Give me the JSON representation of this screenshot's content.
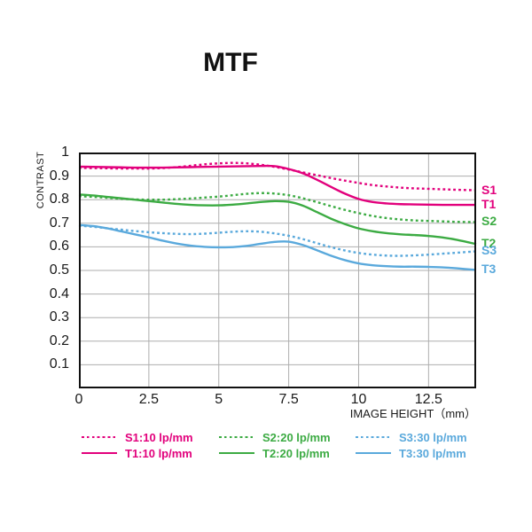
{
  "title": "MTF",
  "colors": {
    "magenta": "#E2007C",
    "green": "#3CAB43",
    "blue": "#5AA9DC",
    "grid": "#AEAEAE",
    "axis": "#111111",
    "text": "#1A1A1A"
  },
  "chart_data": {
    "type": "line",
    "title": "MTF",
    "xlabel": "IMAGE HEIGHT（mm）",
    "ylabel": "CONTRAST",
    "xlim": [
      0,
      14.2
    ],
    "ylim": [
      0,
      1
    ],
    "grid": true,
    "legend_position": "bottom",
    "x_ticks": [
      {
        "v": 0,
        "label": "0"
      },
      {
        "v": 2.5,
        "label": "2.5"
      },
      {
        "v": 5,
        "label": "5"
      },
      {
        "v": 7.5,
        "label": "7.5"
      },
      {
        "v": 10,
        "label": "10"
      },
      {
        "v": 12.5,
        "label": "12.5"
      }
    ],
    "y_ticks": [
      {
        "v": 1,
        "label": "1"
      },
      {
        "v": 0.9,
        "label": "0.9"
      },
      {
        "v": 0.8,
        "label": "0.8"
      },
      {
        "v": 0.7,
        "label": "0.7"
      },
      {
        "v": 0.6,
        "label": "0.6"
      },
      {
        "v": 0.5,
        "label": "0.5"
      },
      {
        "v": 0.4,
        "label": "0.4"
      },
      {
        "v": 0.3,
        "label": "0.3"
      },
      {
        "v": 0.2,
        "label": "0.2"
      },
      {
        "v": 0.1,
        "label": "0.1"
      }
    ],
    "series": [
      {
        "name": "S1",
        "curve_label": "S1",
        "legend_label": "S1:10 lp/mm",
        "color": "#E2007C",
        "style": "dotted",
        "points": [
          [
            0,
            0.935
          ],
          [
            0.5,
            0.934
          ],
          [
            1,
            0.933
          ],
          [
            1.5,
            0.932
          ],
          [
            2,
            0.932
          ],
          [
            2.5,
            0.932
          ],
          [
            3,
            0.934
          ],
          [
            3.5,
            0.938
          ],
          [
            4,
            0.944
          ],
          [
            4.5,
            0.95
          ],
          [
            5,
            0.954
          ],
          [
            5.5,
            0.956
          ],
          [
            6,
            0.954
          ],
          [
            6.5,
            0.948
          ],
          [
            7,
            0.939
          ],
          [
            7.5,
            0.928
          ],
          [
            8,
            0.916
          ],
          [
            8.5,
            0.904
          ],
          [
            9,
            0.892
          ],
          [
            9.5,
            0.881
          ],
          [
            10,
            0.871
          ],
          [
            10.5,
            0.862
          ],
          [
            11,
            0.856
          ],
          [
            11.5,
            0.851
          ],
          [
            12,
            0.848
          ],
          [
            12.5,
            0.846
          ],
          [
            13,
            0.844
          ],
          [
            13.5,
            0.842
          ],
          [
            14.2,
            0.84
          ]
        ]
      },
      {
        "name": "T1",
        "curve_label": "T1",
        "legend_label": "T1:10 lp/mm",
        "color": "#E2007C",
        "style": "solid",
        "points": [
          [
            0,
            0.94
          ],
          [
            0.5,
            0.939
          ],
          [
            1,
            0.938
          ],
          [
            1.5,
            0.937
          ],
          [
            2,
            0.936
          ],
          [
            2.5,
            0.936
          ],
          [
            3,
            0.936
          ],
          [
            3.5,
            0.937
          ],
          [
            4,
            0.938
          ],
          [
            4.5,
            0.939
          ],
          [
            5,
            0.94
          ],
          [
            5.5,
            0.941
          ],
          [
            6,
            0.942
          ],
          [
            6.5,
            0.943
          ],
          [
            7,
            0.942
          ],
          [
            7.5,
            0.93
          ],
          [
            8,
            0.912
          ],
          [
            8.5,
            0.885
          ],
          [
            9,
            0.855
          ],
          [
            9.5,
            0.826
          ],
          [
            10,
            0.803
          ],
          [
            10.5,
            0.79
          ],
          [
            11,
            0.784
          ],
          [
            11.5,
            0.781
          ],
          [
            12,
            0.78
          ],
          [
            12.5,
            0.779
          ],
          [
            13,
            0.778
          ],
          [
            13.5,
            0.778
          ],
          [
            14.2,
            0.778
          ]
        ]
      },
      {
        "name": "S2",
        "curve_label": "S2",
        "legend_label": "S2:20 lp/mm",
        "color": "#3CAB43",
        "style": "dotted",
        "points": [
          [
            0,
            0.815
          ],
          [
            0.5,
            0.812
          ],
          [
            1,
            0.808
          ],
          [
            1.5,
            0.804
          ],
          [
            2,
            0.801
          ],
          [
            2.5,
            0.8
          ],
          [
            3,
            0.8
          ],
          [
            3.5,
            0.802
          ],
          [
            4,
            0.805
          ],
          [
            4.5,
            0.809
          ],
          [
            5,
            0.813
          ],
          [
            5.5,
            0.819
          ],
          [
            6,
            0.825
          ],
          [
            6.5,
            0.828
          ],
          [
            7,
            0.826
          ],
          [
            7.5,
            0.819
          ],
          [
            8,
            0.806
          ],
          [
            8.5,
            0.79
          ],
          [
            9,
            0.773
          ],
          [
            9.5,
            0.757
          ],
          [
            10,
            0.743
          ],
          [
            10.5,
            0.731
          ],
          [
            11,
            0.722
          ],
          [
            11.5,
            0.716
          ],
          [
            12,
            0.712
          ],
          [
            12.5,
            0.71
          ],
          [
            13,
            0.708
          ],
          [
            13.5,
            0.706
          ],
          [
            14.2,
            0.705
          ]
        ]
      },
      {
        "name": "T2",
        "curve_label": "T2",
        "legend_label": "T2:20 lp/mm",
        "color": "#3CAB43",
        "style": "solid",
        "points": [
          [
            0,
            0.822
          ],
          [
            0.5,
            0.818
          ],
          [
            1,
            0.812
          ],
          [
            1.5,
            0.806
          ],
          [
            2,
            0.8
          ],
          [
            2.5,
            0.794
          ],
          [
            3,
            0.788
          ],
          [
            3.5,
            0.782
          ],
          [
            4,
            0.778
          ],
          [
            4.5,
            0.776
          ],
          [
            5,
            0.776
          ],
          [
            5.5,
            0.779
          ],
          [
            6,
            0.784
          ],
          [
            6.5,
            0.79
          ],
          [
            7,
            0.794
          ],
          [
            7.5,
            0.791
          ],
          [
            8,
            0.775
          ],
          [
            8.5,
            0.748
          ],
          [
            9,
            0.72
          ],
          [
            9.5,
            0.697
          ],
          [
            10,
            0.678
          ],
          [
            10.5,
            0.666
          ],
          [
            11,
            0.658
          ],
          [
            11.5,
            0.653
          ],
          [
            12,
            0.65
          ],
          [
            12.5,
            0.646
          ],
          [
            13,
            0.64
          ],
          [
            13.5,
            0.63
          ],
          [
            14.2,
            0.612
          ]
        ]
      },
      {
        "name": "S3",
        "curve_label": "S3",
        "legend_label": "S3:30 lp/mm",
        "color": "#5AA9DC",
        "style": "dotted",
        "points": [
          [
            0,
            0.69
          ],
          [
            0.5,
            0.685
          ],
          [
            1,
            0.679
          ],
          [
            1.5,
            0.673
          ],
          [
            2,
            0.667
          ],
          [
            2.5,
            0.662
          ],
          [
            3,
            0.658
          ],
          [
            3.5,
            0.655
          ],
          [
            4,
            0.654
          ],
          [
            4.5,
            0.656
          ],
          [
            5,
            0.66
          ],
          [
            5.5,
            0.664
          ],
          [
            6,
            0.666
          ],
          [
            6.5,
            0.664
          ],
          [
            7,
            0.657
          ],
          [
            7.5,
            0.647
          ],
          [
            8,
            0.633
          ],
          [
            8.5,
            0.616
          ],
          [
            9,
            0.599
          ],
          [
            9.5,
            0.585
          ],
          [
            10,
            0.574
          ],
          [
            10.5,
            0.567
          ],
          [
            11,
            0.563
          ],
          [
            11.5,
            0.562
          ],
          [
            12,
            0.564
          ],
          [
            12.5,
            0.567
          ],
          [
            13,
            0.571
          ],
          [
            13.5,
            0.575
          ],
          [
            14.2,
            0.581
          ]
        ]
      },
      {
        "name": "T3",
        "curve_label": "T3",
        "legend_label": "T3:30 lp/mm",
        "color": "#5AA9DC",
        "style": "solid",
        "points": [
          [
            0,
            0.693
          ],
          [
            0.5,
            0.688
          ],
          [
            1,
            0.679
          ],
          [
            1.5,
            0.666
          ],
          [
            2,
            0.653
          ],
          [
            2.5,
            0.64
          ],
          [
            3,
            0.626
          ],
          [
            3.5,
            0.614
          ],
          [
            4,
            0.605
          ],
          [
            4.5,
            0.6
          ],
          [
            5,
            0.598
          ],
          [
            5.5,
            0.599
          ],
          [
            6,
            0.604
          ],
          [
            6.5,
            0.613
          ],
          [
            7,
            0.621
          ],
          [
            7.5,
            0.622
          ],
          [
            8,
            0.608
          ],
          [
            8.5,
            0.586
          ],
          [
            9,
            0.563
          ],
          [
            9.5,
            0.544
          ],
          [
            10,
            0.53
          ],
          [
            10.5,
            0.522
          ],
          [
            11,
            0.518
          ],
          [
            11.5,
            0.516
          ],
          [
            12,
            0.516
          ],
          [
            12.5,
            0.515
          ],
          [
            13,
            0.513
          ],
          [
            13.5,
            0.509
          ],
          [
            14.2,
            0.502
          ]
        ]
      }
    ]
  }
}
